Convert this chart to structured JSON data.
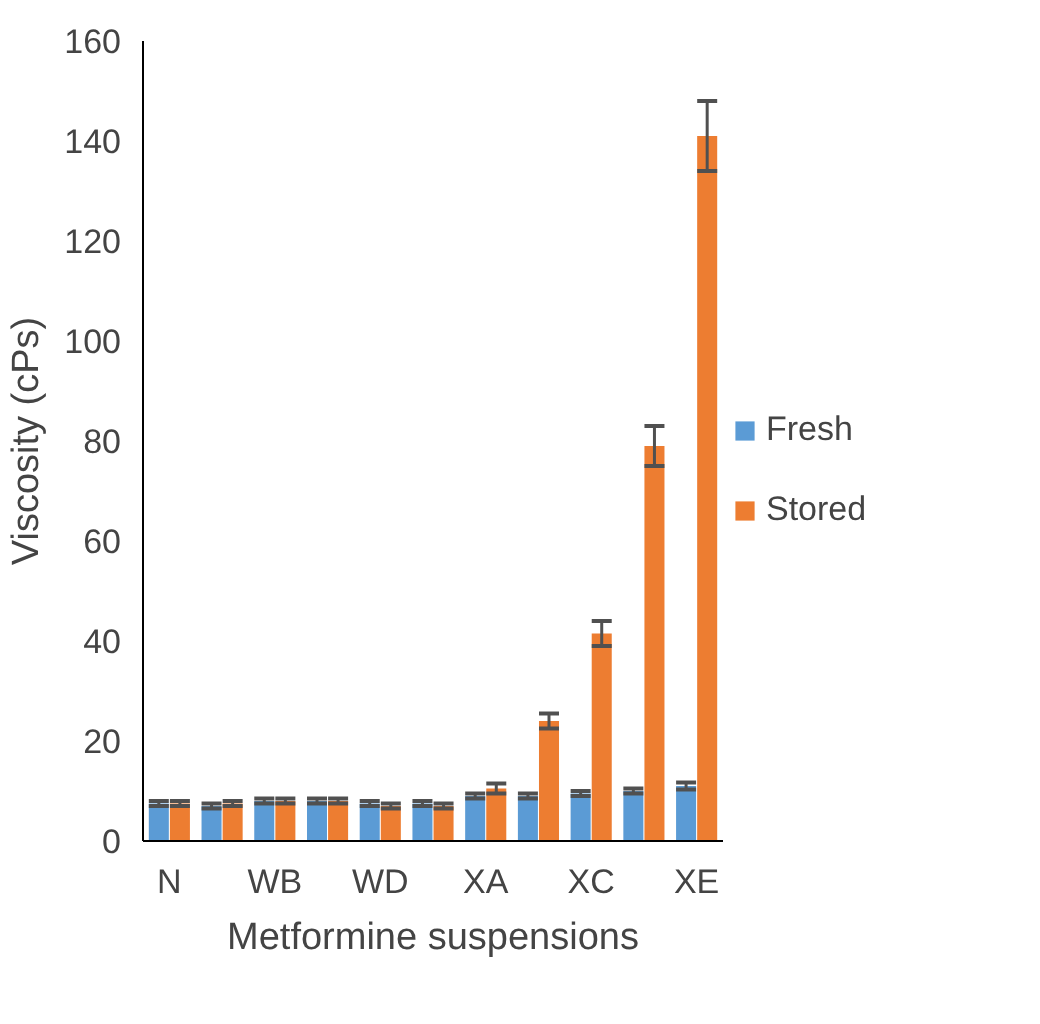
{
  "chart_data": {
    "type": "bar",
    "xlabel": "Metformine suspensions",
    "ylabel": "Viscosity (cPs)",
    "categories": [
      "N",
      null,
      "WB",
      null,
      "WD",
      null,
      "XA",
      null,
      "XC",
      null,
      "XE"
    ],
    "series": [
      {
        "name": "Fresh",
        "color": "#5b9bd5",
        "values": [
          7.5,
          7,
          8,
          8,
          7.5,
          7.5,
          9,
          9,
          9.5,
          10,
          11
        ],
        "errors": [
          0.5,
          0.5,
          0.5,
          0.5,
          0.5,
          0.5,
          0.5,
          0.5,
          0.5,
          0.5,
          0.7
        ]
      },
      {
        "name": "Stored",
        "color": "#ed7d31",
        "values": [
          7.5,
          7.5,
          8,
          8,
          7,
          7,
          10.5,
          24,
          41.5,
          79,
          141
        ],
        "errors": [
          0.5,
          0.5,
          0.5,
          0.5,
          0.5,
          0.5,
          1,
          1.5,
          2.5,
          4,
          7
        ]
      }
    ],
    "ylim": [
      0,
      160
    ],
    "yticks": [
      0,
      20,
      40,
      60,
      80,
      100,
      120,
      140,
      160
    ],
    "legend": "right"
  }
}
